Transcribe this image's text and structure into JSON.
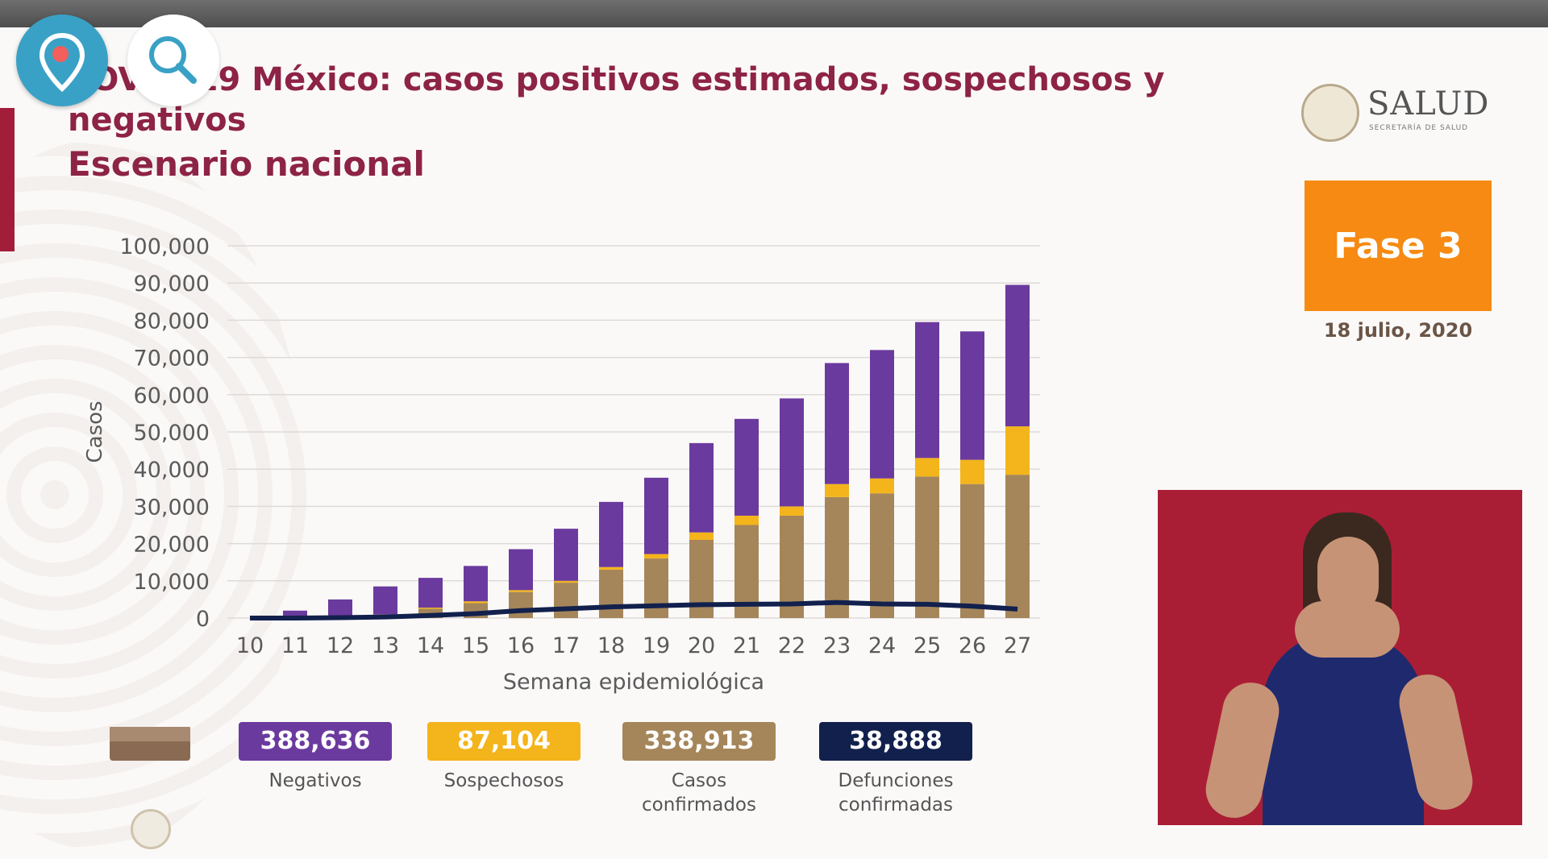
{
  "slide": {
    "title": "COVID-19 México: casos positivos estimados, sospechosos y negativos",
    "subtitle": "Escenario nacional",
    "brand": "SALUD",
    "brand_sub": "SECRETARÍA DE SALUD",
    "phase": "Fase 3",
    "date": "18 julio, 2020"
  },
  "overlay_buttons": {
    "periscope_icon": "location-pin-icon",
    "search_icon": "search-icon"
  },
  "legend": [
    {
      "value": "388,636",
      "label": "Negativos",
      "color": "#6b3a9e"
    },
    {
      "value": "87,104",
      "label": "Sospechosos",
      "color": "#f4b41b"
    },
    {
      "value": "338,913",
      "label": "Casos confirmados",
      "color": "#a5865a"
    },
    {
      "value": "38,888",
      "label": "Defunciones confirmadas",
      "color": "#12204d"
    }
  ],
  "chart_data": {
    "type": "bar",
    "stacked": true,
    "xlabel": "Semana epidemiológica",
    "ylabel": "Casos",
    "ylim": [
      0,
      100000
    ],
    "yticks": [
      "0",
      "10,000",
      "20,000",
      "30,000",
      "40,000",
      "50,000",
      "60,000",
      "70,000",
      "80,000",
      "90,000",
      "100,000"
    ],
    "categories": [
      "10",
      "11",
      "12",
      "13",
      "14",
      "15",
      "16",
      "17",
      "18",
      "19",
      "20",
      "21",
      "22",
      "23",
      "24",
      "25",
      "26",
      "27"
    ],
    "series": [
      {
        "color": "#a5865a",
        "values": [
          0,
          200,
          500,
          1000,
          2500,
          4000,
          7000,
          9500,
          13000,
          16000,
          21000,
          25000,
          27500,
          32500,
          33500,
          38000,
          36000,
          38500
        ]
      },
      {
        "color": "#f4b41b",
        "values": [
          0,
          0,
          0,
          0,
          300,
          500,
          500,
          500,
          700,
          1200,
          2000,
          2500,
          2500,
          3500,
          4000,
          5000,
          6500,
          13000
        ]
      },
      {
        "color": "#6b3a9e",
        "values": [
          0,
          1800,
          4500,
          7500,
          8000,
          9500,
          11000,
          14000,
          17500,
          20500,
          24000,
          26000,
          29000,
          32500,
          34500,
          36500,
          34500,
          38000
        ]
      }
    ],
    "line": {
      "color": "#12204d",
      "values": [
        0,
        0,
        100,
        300,
        700,
        1200,
        2000,
        2500,
        3000,
        3300,
        3600,
        3700,
        3800,
        4200,
        3800,
        3700,
        3200,
        2400
      ]
    },
    "grid": true
  }
}
